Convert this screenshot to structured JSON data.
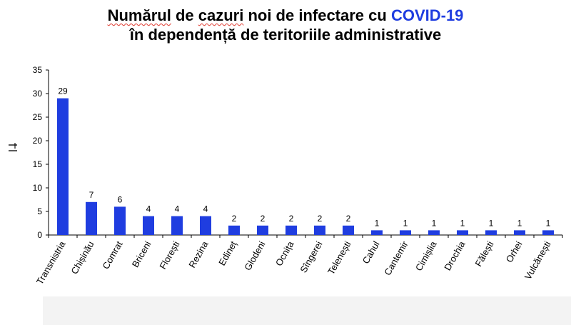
{
  "title": {
    "part1": "Numărul",
    "part2": " de ",
    "part3": "cazuri",
    "part4": " noi de infectare cu ",
    "highlight": "COVID-19",
    "line2": "în dependență de teritoriile administrative"
  },
  "colors": {
    "bar": "#1f3de0",
    "accent": "#1f3de0"
  },
  "chart_data": {
    "type": "bar",
    "title": "Numărul de cazuri noi de infectare cu COVID-19 în dependență de teritoriile administrative",
    "xlabel": "",
    "ylabel": "",
    "ylim": [
      0,
      35
    ],
    "yticks": [
      0,
      5,
      10,
      15,
      20,
      25,
      30,
      35
    ],
    "categories": [
      "Transnistria",
      "Chișinău",
      "Comrat",
      "Briceni",
      "Florești",
      "Rezina",
      "Edineț",
      "Glodeni",
      "Ocnița",
      "Sîngerei",
      "Telenești",
      "Cahul",
      "Cantemir",
      "Cimișlia",
      "Drochia",
      "Fălești",
      "Orhei",
      "Vulcănești"
    ],
    "values": [
      29,
      7,
      6,
      4,
      4,
      4,
      2,
      2,
      2,
      2,
      2,
      1,
      1,
      1,
      1,
      1,
      1,
      1
    ],
    "data_labels": true,
    "grid": false
  }
}
